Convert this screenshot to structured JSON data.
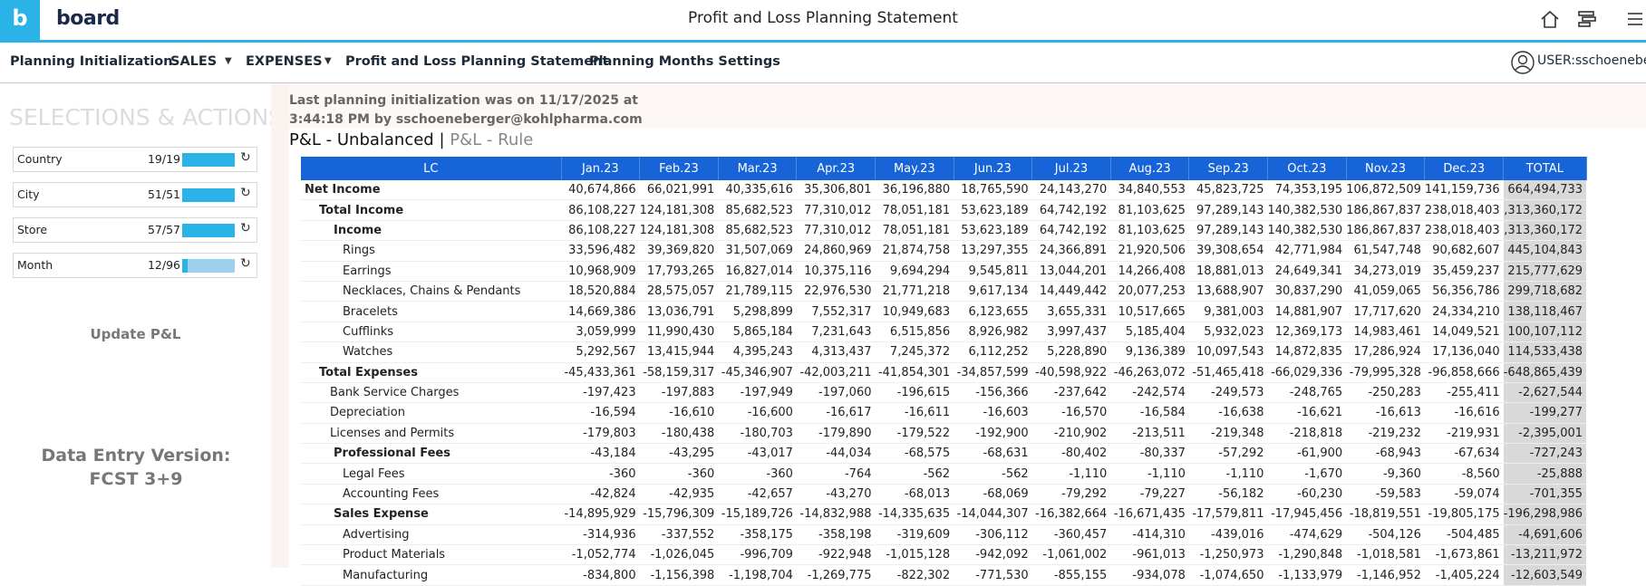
{
  "header": {
    "logo_mark": "b",
    "logo": "board",
    "title": "Profit and Loss Planning Statement"
  },
  "nav": {
    "items": [
      "Planning Initialization",
      "SALES",
      "EXPENSES",
      "Profit and Loss Planning Statement",
      "Planning Months Settings"
    ],
    "user": "USER:sschoeneber"
  },
  "sidebar": {
    "title": "SELECTIONS & ACTIONS",
    "selectors": [
      {
        "label": "Country",
        "value": "19/19"
      },
      {
        "label": "City",
        "value": "51/51"
      },
      {
        "label": "Store",
        "value": "57/57"
      },
      {
        "label": "Month",
        "value": "12/96"
      }
    ],
    "update": "Update P&L",
    "version": "Data Entry Version: FCST 3+9"
  },
  "main": {
    "note": "Last planning initialization was on 11/17/2025 at 3:44:18 PM by sschoeneberger@kohlpharma.com",
    "tabs": [
      "P&L - Unbalanced",
      "P&L - Rule"
    ],
    "separator": "|",
    "table": {
      "columns": [
        "LC",
        "Jan.23",
        "Feb.23",
        "Mar.23",
        "Apr.23",
        "May.23",
        "Jun.23",
        "Jul.23",
        "Aug.23",
        "Sep.23",
        "Oct.23",
        "Nov.23",
        "Dec.23",
        "TOTAL"
      ],
      "rows": [
        {
          "label": "Net Income",
          "values": [
            "40,674,866",
            "66,021,991",
            "40,335,616",
            "35,306,801",
            "36,196,880",
            "18,765,590",
            "24,143,270",
            "34,840,553",
            "45,823,725",
            "74,353,195",
            "106,872,509",
            "141,159,736",
            "664,494,733"
          ]
        },
        {
          "label": "Total Income",
          "values": [
            "86,108,227",
            "124,181,308",
            "85,682,523",
            "77,310,012",
            "78,051,181",
            "53,623,189",
            "64,742,192",
            "81,103,625",
            "97,289,143",
            "140,382,530",
            "186,867,837",
            "238,018,403",
            ",313,360,172"
          ]
        },
        {
          "label": "Income",
          "values": [
            "86,108,227",
            "124,181,308",
            "85,682,523",
            "77,310,012",
            "78,051,181",
            "53,623,189",
            "64,742,192",
            "81,103,625",
            "97,289,143",
            "140,382,530",
            "186,867,837",
            "238,018,403",
            ",313,360,172"
          ]
        },
        {
          "label": "Rings",
          "values": [
            "33,596,482",
            "39,369,820",
            "31,507,069",
            "24,860,969",
            "21,874,758",
            "13,297,355",
            "24,366,891",
            "21,920,506",
            "39,308,654",
            "42,771,984",
            "61,547,748",
            "90,682,607",
            "445,104,843"
          ]
        },
        {
          "label": "Earrings",
          "values": [
            "10,968,909",
            "17,793,265",
            "16,827,014",
            "10,375,116",
            "9,694,294",
            "9,545,811",
            "13,044,201",
            "14,266,408",
            "18,881,013",
            "24,649,341",
            "34,273,019",
            "35,459,237",
            "215,777,629"
          ]
        },
        {
          "label": "Necklaces, Chains & Pendants",
          "values": [
            "18,520,884",
            "28,575,057",
            "21,789,115",
            "22,976,530",
            "21,771,218",
            "9,617,134",
            "14,449,442",
            "20,077,253",
            "13,688,907",
            "30,837,290",
            "41,059,065",
            "56,356,786",
            "299,718,682"
          ]
        },
        {
          "label": "Bracelets",
          "values": [
            "14,669,386",
            "13,036,791",
            "5,298,899",
            "7,552,317",
            "10,949,683",
            "6,123,655",
            "3,655,331",
            "10,517,665",
            "9,381,003",
            "14,881,907",
            "17,717,620",
            "24,334,210",
            "138,118,467"
          ]
        },
        {
          "label": "Cufflinks",
          "values": [
            "3,059,999",
            "11,990,430",
            "5,865,184",
            "7,231,643",
            "6,515,856",
            "8,926,982",
            "3,997,437",
            "5,185,404",
            "5,932,023",
            "12,369,173",
            "14,983,461",
            "14,049,521",
            "100,107,112"
          ]
        },
        {
          "label": "Watches",
          "values": [
            "5,292,567",
            "13,415,944",
            "4,395,243",
            "4,313,437",
            "7,245,372",
            "6,112,252",
            "5,228,890",
            "9,136,389",
            "10,097,543",
            "14,872,835",
            "17,286,924",
            "17,136,040",
            "114,533,438"
          ]
        },
        {
          "label": "Total Expenses",
          "values": [
            "-45,433,361",
            "-58,159,317",
            "-45,346,907",
            "-42,003,211",
            "-41,854,301",
            "-34,857,599",
            "-40,598,922",
            "-46,263,072",
            "-51,465,418",
            "-66,029,336",
            "-79,995,328",
            "-96,858,666",
            "-648,865,439"
          ]
        },
        {
          "label": "Bank Service Charges",
          "values": [
            "-197,423",
            "-197,883",
            "-197,949",
            "-197,060",
            "-196,615",
            "-156,366",
            "-237,642",
            "-242,574",
            "-249,573",
            "-248,765",
            "-250,283",
            "-255,411",
            "-2,627,544"
          ]
        },
        {
          "label": "Depreciation",
          "values": [
            "-16,594",
            "-16,610",
            "-16,600",
            "-16,617",
            "-16,611",
            "-16,603",
            "-16,570",
            "-16,584",
            "-16,638",
            "-16,621",
            "-16,613",
            "-16,616",
            "-199,277"
          ]
        },
        {
          "label": "Licenses and Permits",
          "values": [
            "-179,803",
            "-180,438",
            "-180,703",
            "-179,890",
            "-179,522",
            "-192,900",
            "-210,902",
            "-213,511",
            "-219,348",
            "-218,818",
            "-219,232",
            "-219,931",
            "-2,395,001"
          ]
        },
        {
          "label": "Professional Fees",
          "values": [
            "-43,184",
            "-43,295",
            "-43,017",
            "-44,034",
            "-68,575",
            "-68,631",
            "-80,402",
            "-80,337",
            "-57,292",
            "-61,900",
            "-68,943",
            "-67,634",
            "-727,243"
          ]
        },
        {
          "label": "Legal Fees",
          "values": [
            "-360",
            "-360",
            "-360",
            "-764",
            "-562",
            "-562",
            "-1,110",
            "-1,110",
            "-1,110",
            "-1,670",
            "-9,360",
            "-8,560",
            "-25,888"
          ]
        },
        {
          "label": "Accounting Fees",
          "values": [
            "-42,824",
            "-42,935",
            "-42,657",
            "-43,270",
            "-68,013",
            "-68,069",
            "-79,292",
            "-79,227",
            "-56,182",
            "-60,230",
            "-59,583",
            "-59,074",
            "-701,355"
          ]
        },
        {
          "label": "Sales Expense",
          "values": [
            "-14,895,929",
            "-15,796,309",
            "-15,189,726",
            "-14,832,988",
            "-14,335,635",
            "-14,044,307",
            "-16,382,664",
            "-16,671,435",
            "-17,579,811",
            "-17,945,456",
            "-18,819,551",
            "-19,805,175",
            "-196,298,986"
          ]
        },
        {
          "label": "Advertising",
          "values": [
            "-314,936",
            "-337,552",
            "-358,175",
            "-358,198",
            "-319,609",
            "-306,112",
            "-360,457",
            "-414,310",
            "-439,016",
            "-474,629",
            "-504,126",
            "-504,485",
            "-4,691,606"
          ]
        },
        {
          "label": "Product Materials",
          "values": [
            "-1,052,774",
            "-1,026,045",
            "-996,709",
            "-922,948",
            "-1,015,128",
            "-942,092",
            "-1,061,002",
            "-961,013",
            "-1,250,973",
            "-1,290,848",
            "-1,018,581",
            "-1,673,861",
            "-13,211,972"
          ]
        },
        {
          "label": "Manufacturing",
          "values": [
            "-834,800",
            "-1,156,398",
            "-1,198,704",
            "-1,269,775",
            "-822,302",
            "-771,530",
            "-855,155",
            "-934,078",
            "-1,074,650",
            "-1,133,979",
            "-1,146,952",
            "-1,405,224",
            "-12,603,549"
          ]
        }
      ]
    }
  }
}
